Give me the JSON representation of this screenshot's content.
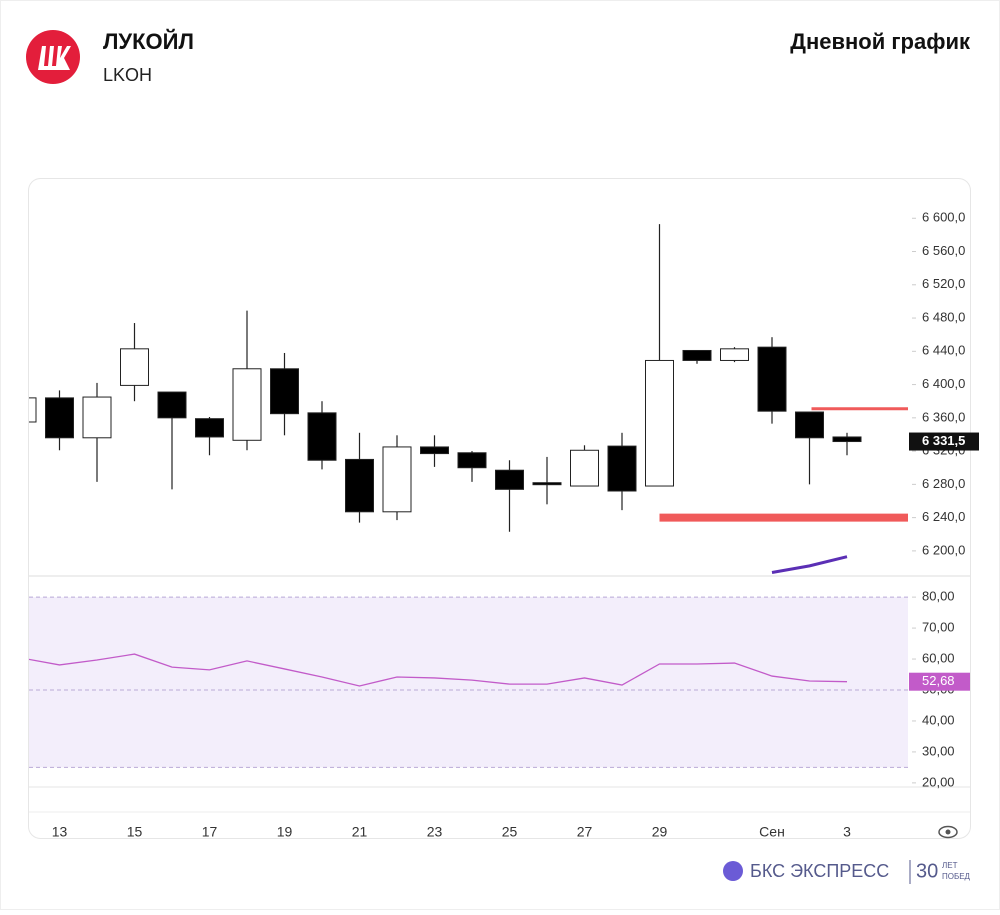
{
  "chart_data": {
    "type": "candlestick",
    "title": "ЛУКОЙЛ",
    "subtitle": "LKOH",
    "chart_label": "Дневной график",
    "categories": [
      null,
      "13",
      null,
      "15",
      null,
      "17",
      null,
      "19",
      null,
      "21",
      null,
      "23",
      null,
      "25",
      null,
      "27",
      null,
      "29",
      null,
      null,
      "Сен",
      null,
      "3"
    ],
    "open": [
      6355,
      6384,
      6336,
      6399,
      6391,
      6359,
      6333,
      6419,
      6366,
      6310,
      6247,
      6325,
      6318,
      6297,
      6282,
      6278,
      6326,
      6278,
      6441,
      6429,
      6445,
      6367,
      6337
    ],
    "high": [
      6386,
      6393,
      6402,
      6474,
      6391,
      6361,
      6489,
      6438,
      6380,
      6342,
      6339,
      6339,
      6320,
      6309,
      6313,
      6327,
      6342,
      6593,
      6441,
      6445,
      6457,
      6367,
      6342
    ],
    "low": [
      6353,
      6321,
      6283,
      6380,
      6274,
      6315,
      6321,
      6339,
      6298,
      6234,
      6237,
      6301,
      6283,
      6223,
      6256,
      6278,
      6249,
      6278,
      6425,
      6427,
      6353,
      6280,
      6315
    ],
    "close": [
      6384,
      6336,
      6385,
      6443,
      6360,
      6337,
      6419,
      6365,
      6309,
      6247,
      6325,
      6317,
      6300,
      6274,
      6280,
      6321,
      6272,
      6429,
      6429,
      6443,
      6368,
      6336,
      6331.5
    ],
    "ma": {
      "color": "#5b2fb5",
      "values": [
        null,
        null,
        null,
        null,
        null,
        null,
        null,
        null,
        null,
        null,
        null,
        null,
        null,
        null,
        null,
        null,
        null,
        null,
        null,
        null,
        6174,
        6182,
        6193
      ]
    },
    "levels": [
      {
        "value": 6371,
        "color": "#f05a5a"
      },
      {
        "value": 6240,
        "color": "#f05a5a"
      }
    ],
    "last_price": {
      "value": 6331.5,
      "label": "6 331,5"
    },
    "ylim": [
      6171,
      6640
    ],
    "yticks": [
      {
        "value": 6200,
        "label": "6 200,0"
      },
      {
        "value": 6240,
        "label": "6 240,0"
      },
      {
        "value": 6280,
        "label": "6 280,0"
      },
      {
        "value": 6320,
        "label": "6 320,0"
      },
      {
        "value": 6360,
        "label": "6 360,0"
      },
      {
        "value": 6400,
        "label": "6 400,0"
      },
      {
        "value": 6440,
        "label": "6 440,0"
      },
      {
        "value": 6480,
        "label": "6 480,0"
      },
      {
        "value": 6520,
        "label": "6 520,0"
      },
      {
        "value": 6560,
        "label": "6 560,0"
      },
      {
        "value": 6600,
        "label": "6 600,0"
      }
    ],
    "rsi": {
      "color": "#c25bc9",
      "values": [
        60.3,
        58.1,
        59.7,
        61.6,
        57.4,
        56.5,
        59.4,
        56.8,
        54.2,
        51.3,
        54.2,
        53.9,
        53.2,
        51.9,
        51.9,
        53.9,
        51.6,
        58.4,
        58.4,
        58.7,
        54.5,
        52.9,
        52.68
      ],
      "last_label": "52,68",
      "ylim": [
        17.7,
        82.3
      ],
      "bands": [
        25,
        80
      ],
      "mid": 50,
      "yticks": [
        {
          "value": 20,
          "label": "20,00"
        },
        {
          "value": 30,
          "label": "30,00"
        },
        {
          "value": 40,
          "label": "40,00"
        },
        {
          "value": 50,
          "label": "50,00"
        },
        {
          "value": 60,
          "label": "60,00"
        },
        {
          "value": 70,
          "label": "70,00"
        },
        {
          "value": 80,
          "label": "80,00"
        }
      ]
    }
  },
  "footer": {
    "brand": "БКС ЭКСПРЕСС",
    "years": "30",
    "tag1": "ЛЕТ",
    "tag2": "ПОБЕД"
  }
}
